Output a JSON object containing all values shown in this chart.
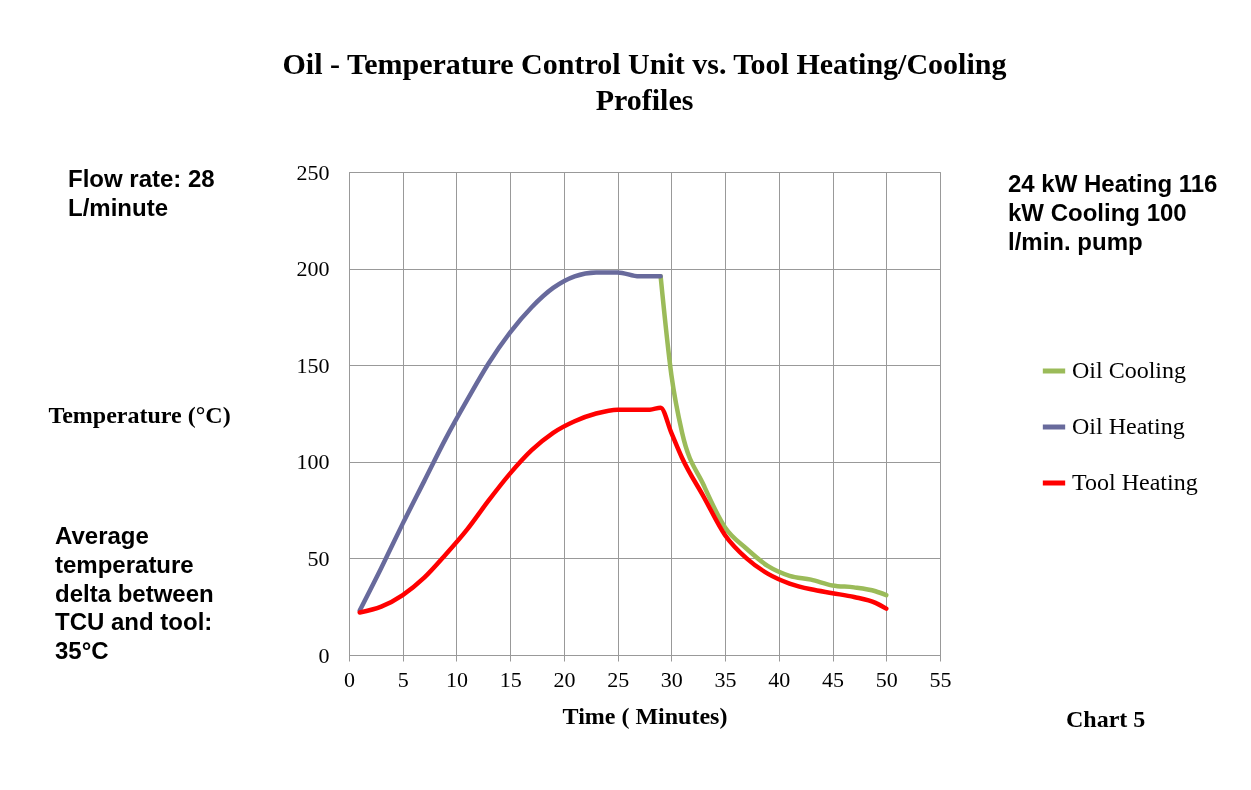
{
  "chart_data": {
    "type": "line",
    "title": "Oil - Temperature  Control Unit vs. Tool  Heating/Cooling Profiles",
    "xlabel": "Time ( Minutes)",
    "ylabel": "Temperature (°C)",
    "xlim": [
      0,
      55
    ],
    "xticks": [
      0,
      5,
      10,
      15,
      20,
      25,
      30,
      35,
      40,
      45,
      50,
      55
    ],
    "ylim": [
      0,
      250
    ],
    "yticks": [
      0,
      50,
      100,
      150,
      200,
      250
    ],
    "grid": true,
    "legend": "right",
    "marker": "none",
    "line_style": "solid",
    "annotations": [
      "Flow rate: 28 L/minute",
      "24 kW Heating 116 kW Cooling 100 l/min. pump",
      "Average temperature delta between TCU and tool: 35°C",
      "Chart 5"
    ],
    "series": [
      {
        "name": "Oil Cooling",
        "color": "#9bbb59",
        "x": [
          29,
          30,
          31,
          33,
          35,
          37,
          39,
          41,
          43,
          45,
          47,
          49,
          50
        ],
        "values": [
          196,
          145,
          115,
          88,
          66,
          55,
          46,
          41,
          39,
          36,
          35,
          33,
          31
        ]
      },
      {
        "name": "Oil Heating",
        "color": "#686a9c",
        "x": [
          1,
          3,
          5,
          7,
          9,
          11,
          13,
          15,
          17,
          19,
          21,
          23,
          25,
          27,
          29
        ],
        "values": [
          23,
          45,
          68,
          90,
          112,
          132,
          151,
          167,
          180,
          190,
          196,
          198,
          198,
          196,
          196
        ]
      },
      {
        "name": "Tool Heating",
        "color": "#ff0000",
        "x": [
          1,
          3,
          5,
          7,
          9,
          11,
          13,
          15,
          17,
          19,
          21,
          23,
          25,
          27,
          28,
          29,
          30,
          31,
          33,
          35,
          37,
          39,
          41,
          43,
          45,
          47,
          49,
          50
        ],
        "values": [
          22,
          25,
          31,
          40,
          52,
          65,
          80,
          94,
          106,
          115,
          121,
          125,
          127,
          127,
          127,
          128,
          115,
          102,
          82,
          62,
          50,
          42,
          37,
          34,
          32,
          30,
          27,
          24
        ]
      }
    ]
  }
}
